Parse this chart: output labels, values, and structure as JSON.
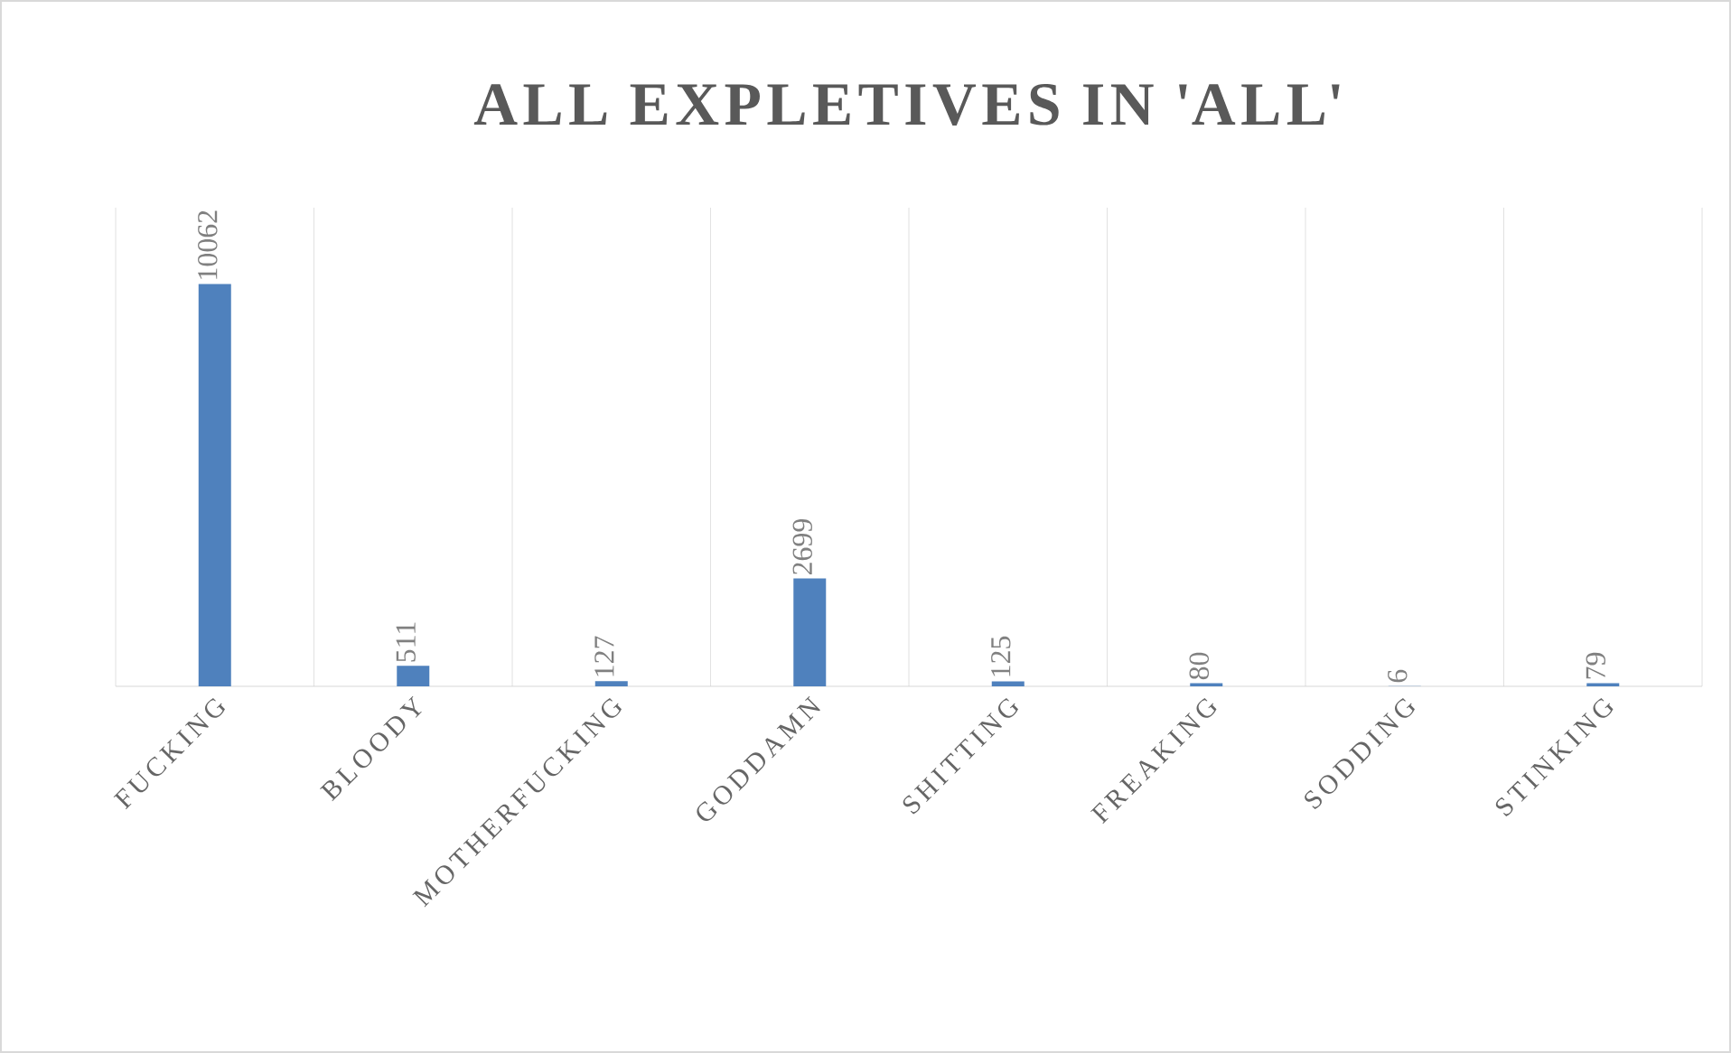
{
  "chart_data": {
    "type": "bar",
    "title": "ALL EXPLETIVES IN 'ALL'",
    "categories": [
      "FUCKING",
      "BLOODY",
      "MOTHERFUCKING",
      "GODDAMN",
      "SHITTING",
      "FREAKING",
      "SODDING",
      "STINKING"
    ],
    "values": [
      10062,
      511,
      127,
      2699,
      125,
      80,
      6,
      79
    ],
    "color": "#4f81bd",
    "data_labels": true,
    "grid": "x"
  }
}
